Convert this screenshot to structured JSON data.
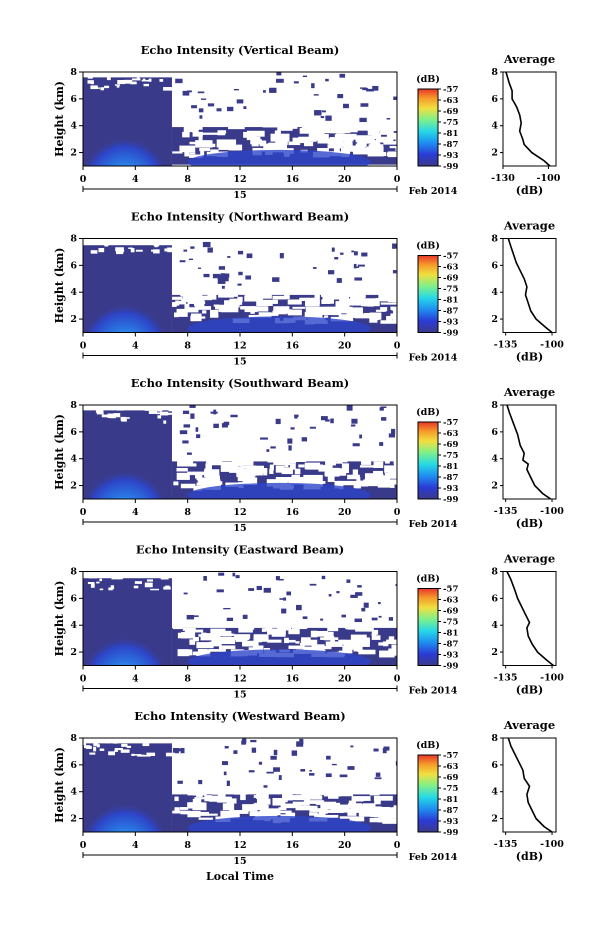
{
  "figure": {
    "xlabel": "Local Time",
    "date_label": "15",
    "month_label": "Feb 2014"
  },
  "chart_data": [
    {
      "type": "heatmap",
      "title": "Echo Intensity (Vertical Beam)",
      "ylabel": "Height (km)",
      "x_ticks": [
        "0",
        "4",
        "8",
        "12",
        "16",
        "20",
        "0"
      ],
      "y_ticks": [
        "2",
        "4",
        "6",
        "8"
      ],
      "xlim": [
        0,
        24
      ],
      "ylim": [
        1,
        8
      ],
      "colorbar": {
        "label": "(dB)",
        "ticks": [
          "-57",
          "-63",
          "-69",
          "-75",
          "-81",
          "-87",
          "-93",
          "-99"
        ],
        "range": [
          -99,
          -57
        ]
      },
      "profile": {
        "title": "Average",
        "xlabel": "(dB)",
        "x_ticks": [
          "-130",
          "-100"
        ],
        "y_ticks": [
          "2",
          "4",
          "6",
          "8"
        ],
        "xlim": [
          -130,
          -95
        ],
        "ylim": [
          1,
          8
        ],
        "x": [
          -99,
          -103,
          -111,
          -116,
          -117,
          -119,
          -118,
          -119,
          -121,
          -124,
          -124,
          -126,
          -128
        ],
        "y": [
          1.0,
          1.4,
          2.0,
          2.6,
          3.0,
          3.6,
          4.2,
          4.8,
          5.4,
          6.0,
          6.6,
          7.2,
          8.0
        ]
      }
    },
    {
      "type": "heatmap",
      "title": "Echo Intensity (Northward Beam)",
      "ylabel": "Height (km)",
      "x_ticks": [
        "0",
        "4",
        "8",
        "12",
        "16",
        "20",
        "0"
      ],
      "y_ticks": [
        "2",
        "4",
        "6",
        "8"
      ],
      "xlim": [
        0,
        24
      ],
      "ylim": [
        1,
        8
      ],
      "colorbar": {
        "label": "(dB)",
        "ticks": [
          "-57",
          "-63",
          "-69",
          "-75",
          "-81",
          "-87",
          "-93",
          "-99"
        ],
        "range": [
          -99,
          -57
        ]
      },
      "profile": {
        "title": "Average",
        "xlabel": "(dB)",
        "x_ticks": [
          "-135",
          "-100"
        ],
        "y_ticks": [
          "2",
          "4",
          "6",
          "8"
        ],
        "xlim": [
          -137,
          -97
        ],
        "ylim": [
          1,
          8
        ],
        "x": [
          -100,
          -105,
          -112,
          -116,
          -118,
          -120,
          -119,
          -121,
          -124,
          -127,
          -129,
          -131,
          -133
        ],
        "y": [
          1.0,
          1.4,
          2.0,
          2.6,
          3.2,
          3.8,
          4.4,
          5.0,
          5.6,
          6.2,
          6.8,
          7.4,
          8.0
        ]
      }
    },
    {
      "type": "heatmap",
      "title": "Echo Intensity (Southward Beam)",
      "ylabel": "Height (km)",
      "x_ticks": [
        "0",
        "4",
        "8",
        "12",
        "16",
        "20",
        "0"
      ],
      "y_ticks": [
        "2",
        "4",
        "6",
        "8"
      ],
      "xlim": [
        0,
        24
      ],
      "ylim": [
        1,
        8
      ],
      "colorbar": {
        "label": "(dB)",
        "ticks": [
          "-57",
          "-63",
          "-69",
          "-75",
          "-81",
          "-87",
          "-93",
          "-99"
        ],
        "range": [
          -99,
          -57
        ]
      },
      "profile": {
        "title": "Average",
        "xlabel": "(dB)",
        "x_ticks": [
          "-135",
          "-100"
        ],
        "y_ticks": [
          "2",
          "4",
          "6",
          "8"
        ],
        "xlim": [
          -137,
          -97
        ],
        "ylim": [
          1,
          8
        ],
        "x": [
          -101,
          -107,
          -113,
          -116,
          -119,
          -118,
          -122,
          -121,
          -124,
          -126,
          -129,
          -132,
          -134
        ],
        "y": [
          1.0,
          1.4,
          2.0,
          2.6,
          3.2,
          3.6,
          3.9,
          4.4,
          5.0,
          5.8,
          6.6,
          7.4,
          8.0
        ]
      }
    },
    {
      "type": "heatmap",
      "title": "Echo Intensity (Eastward Beam)",
      "ylabel": "Height (km)",
      "x_ticks": [
        "0",
        "4",
        "8",
        "12",
        "16",
        "20",
        "0"
      ],
      "y_ticks": [
        "2",
        "4",
        "6",
        "8"
      ],
      "xlim": [
        0,
        24
      ],
      "ylim": [
        1,
        8
      ],
      "colorbar": {
        "label": "(dB)",
        "ticks": [
          "-57",
          "-63",
          "-69",
          "-75",
          "-81",
          "-87",
          "-93",
          "-99"
        ],
        "range": [
          -99,
          -57
        ]
      },
      "profile": {
        "title": "Average",
        "xlabel": "(dB)",
        "x_ticks": [
          "-135",
          "-100"
        ],
        "y_ticks": [
          "2",
          "4",
          "6",
          "8"
        ],
        "xlim": [
          -137,
          -97
        ],
        "ylim": [
          1,
          8
        ],
        "x": [
          -99,
          -104,
          -111,
          -115,
          -118,
          -119,
          -117,
          -120,
          -123,
          -126,
          -128,
          -131,
          -134
        ],
        "y": [
          1.0,
          1.4,
          2.0,
          2.6,
          3.2,
          3.8,
          4.2,
          4.8,
          5.4,
          6.0,
          6.6,
          7.4,
          8.0
        ]
      }
    },
    {
      "type": "heatmap",
      "title": "Echo Intensity (Westward Beam)",
      "ylabel": "Height (km)",
      "x_ticks": [
        "0",
        "4",
        "8",
        "12",
        "16",
        "20",
        "0"
      ],
      "y_ticks": [
        "2",
        "4",
        "6",
        "8"
      ],
      "xlim": [
        0,
        24
      ],
      "ylim": [
        1,
        8
      ],
      "colorbar": {
        "label": "(dB)",
        "ticks": [
          "-57",
          "-63",
          "-69",
          "-75",
          "-81",
          "-87",
          "-93",
          "-99"
        ],
        "range": [
          -99,
          -57
        ]
      },
      "profile": {
        "title": "Average",
        "xlabel": "(dB)",
        "x_ticks": [
          "-135",
          "-100"
        ],
        "y_ticks": [
          "2",
          "4",
          "6",
          "8"
        ],
        "xlim": [
          -137,
          -97
        ],
        "ylim": [
          1,
          8
        ],
        "x": [
          -100,
          -106,
          -112,
          -115,
          -118,
          -119,
          -117,
          -121,
          -122,
          -125,
          -128,
          -131,
          -133
        ],
        "y": [
          1.0,
          1.4,
          2.0,
          2.6,
          3.2,
          3.8,
          4.4,
          5.0,
          5.6,
          6.2,
          6.8,
          7.4,
          8.0
        ]
      }
    }
  ]
}
